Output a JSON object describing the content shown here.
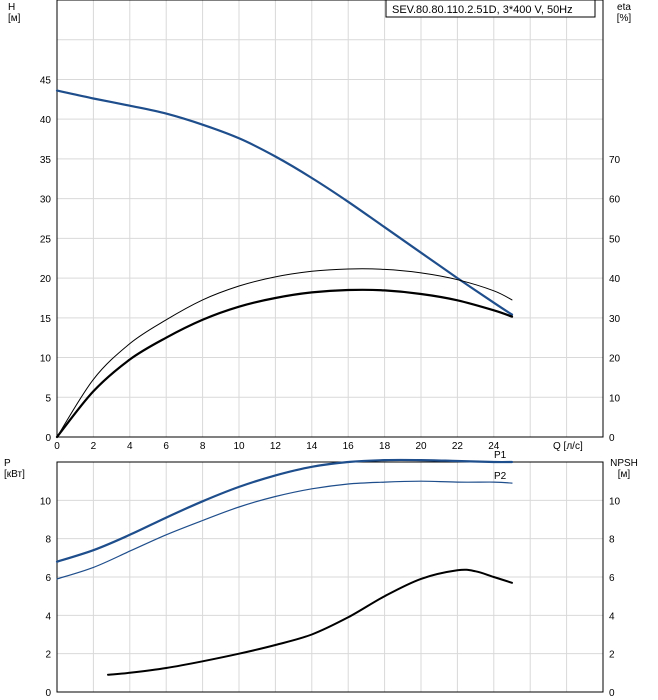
{
  "chart_data": [
    {
      "type": "line",
      "title": "SEV.80.80.110.2.51D, 3*400 V, 50Hz",
      "xlabel": "Q [л/с]",
      "ylabel_left": "H\n[м]",
      "ylabel_right": "eta\n[%]",
      "xlim": [
        0,
        30
      ],
      "ylim_left": [
        0,
        55
      ],
      "ylim_right": [
        0,
        110
      ],
      "xticks": [
        "0",
        "2",
        "4",
        "6",
        "8",
        "10",
        "12",
        "14",
        "16",
        "18",
        "20",
        "22",
        "24"
      ],
      "yticks_left": [
        "0",
        "5",
        "10",
        "15",
        "20",
        "25",
        "30",
        "35",
        "40",
        "45"
      ],
      "yticks_right": [
        "0",
        "10",
        "20",
        "30",
        "40",
        "50",
        "60",
        "70"
      ],
      "grid": true,
      "series": [
        {
          "axis": "left",
          "color": "#1f4e8c",
          "width": 2.2,
          "x": [
            0,
            2,
            4,
            6,
            8,
            10,
            12,
            14,
            16,
            18,
            20,
            22,
            24,
            25
          ],
          "y": [
            43.6,
            42.6,
            41.7,
            40.7,
            39.3,
            37.6,
            35.3,
            32.6,
            29.6,
            26.4,
            23.2,
            20.0,
            16.9,
            15.4
          ]
        },
        {
          "axis": "right",
          "color": "#000000",
          "width": 1.0,
          "x": [
            0,
            2,
            4,
            6,
            8,
            10,
            12,
            14,
            16,
            18,
            20,
            22,
            24,
            25
          ],
          "y": [
            0,
            14.5,
            23.5,
            29.5,
            34.5,
            38.0,
            40.3,
            41.7,
            42.3,
            42.2,
            41.3,
            39.6,
            36.8,
            34.5
          ]
        },
        {
          "axis": "right",
          "color": "#000000",
          "width": 2.2,
          "x": [
            0,
            2,
            4,
            6,
            8,
            10,
            12,
            14,
            16,
            18,
            20,
            22,
            24,
            25
          ],
          "y": [
            0,
            11.5,
            19.5,
            25.0,
            29.5,
            32.8,
            35.0,
            36.4,
            37.0,
            36.9,
            36.0,
            34.4,
            31.9,
            30.3
          ]
        }
      ]
    },
    {
      "type": "line",
      "xlim": [
        0,
        30
      ],
      "ylabel_left": "P\n[кВт]",
      "ylabel_right": "NPSH\n[м]",
      "ylim_left": [
        0,
        12
      ],
      "ylim_right": [
        0,
        12
      ],
      "yticks_left": [
        "0",
        "2",
        "4",
        "6",
        "8",
        "10"
      ],
      "yticks_right": [
        "0",
        "2",
        "4",
        "6",
        "8",
        "10"
      ],
      "grid": true,
      "series": [
        {
          "name": "P1",
          "axis": "left",
          "color": "#1f4e8c",
          "width": 2.2,
          "x": [
            0,
            2,
            4,
            6,
            8,
            10,
            12,
            14,
            16,
            18,
            20,
            22,
            24,
            25
          ],
          "y": [
            6.8,
            7.4,
            8.2,
            9.1,
            9.95,
            10.7,
            11.3,
            11.75,
            12.0,
            12.1,
            12.1,
            12.05,
            12.0,
            12.0
          ]
        },
        {
          "name": "P2",
          "axis": "left",
          "color": "#1f4e8c",
          "width": 1.2,
          "x": [
            0,
            2,
            4,
            6,
            8,
            10,
            12,
            14,
            16,
            18,
            20,
            22,
            24,
            25
          ],
          "y": [
            5.9,
            6.5,
            7.35,
            8.2,
            8.95,
            9.65,
            10.2,
            10.6,
            10.85,
            10.95,
            11.0,
            10.95,
            10.95,
            10.9
          ]
        },
        {
          "axis": "right",
          "color": "#000000",
          "width": 2.0,
          "x": [
            2.8,
            4,
            6,
            8,
            10,
            12,
            14,
            16,
            18,
            20,
            22,
            23,
            24,
            25
          ],
          "y": [
            0.9,
            1.0,
            1.25,
            1.6,
            2.0,
            2.45,
            3.0,
            3.9,
            5.0,
            5.9,
            6.35,
            6.3,
            6.0,
            5.7
          ]
        }
      ]
    }
  ]
}
